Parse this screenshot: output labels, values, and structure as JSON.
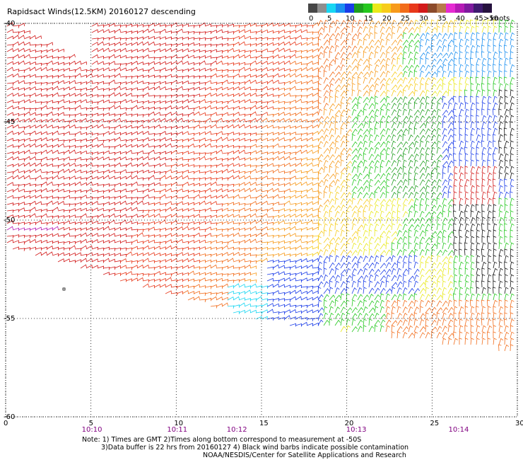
{
  "title": "Rapidsact Winds(12.5KM) 20160127 descending",
  "legend": {
    "unit": "knots",
    "swatches": [
      {
        "value": "0",
        "color": "#474747"
      },
      {
        "value": "",
        "color": "#8e8e8e"
      },
      {
        "value": "5",
        "color": "#18d6f2"
      },
      {
        "value": "",
        "color": "#1a8ff0"
      },
      {
        "value": "10",
        "color": "#1a3ce8"
      },
      {
        "value": "",
        "color": "#1e9e1e"
      },
      {
        "value": "15",
        "color": "#24c81e"
      },
      {
        "value": "",
        "color": "#e9e91a"
      },
      {
        "value": "20",
        "color": "#f7cc1a"
      },
      {
        "value": "",
        "color": "#f79a1a"
      },
      {
        "value": "25",
        "color": "#f26c1a"
      },
      {
        "value": "",
        "color": "#e8381a"
      },
      {
        "value": "30",
        "color": "#d21a1a"
      },
      {
        "value": "",
        "color": "#8b4a2a"
      },
      {
        "value": "35",
        "color": "#b77a4a"
      },
      {
        "value": "",
        "color": "#e62ad2"
      },
      {
        "value": "40",
        "color": "#b51ab5"
      },
      {
        "value": "",
        "color": "#7e1a9e"
      },
      {
        "value": "45",
        "color": "#3e1a6e"
      },
      {
        "value": ">50",
        "color": "#26123e"
      }
    ]
  },
  "axes": {
    "x_ticks": [
      "0",
      "5",
      "10",
      "15",
      "20",
      "25",
      "30"
    ],
    "y_ticks": [
      "-40",
      "-45",
      "-50",
      "-55",
      "-60"
    ]
  },
  "times": [
    "10:10",
    "10:11",
    "10:12",
    "10:13",
    "10:14"
  ],
  "notes": [
    "Note: 1) Times are GMT 2)Times along bottom correspond to measurement at -50S",
    "3)Data buffer is 22 hrs from 20160127 4) Black wind barbs indicate possible contamination",
    "NOAA/NESDIS/Center for Satellite Applications and Research"
  ],
  "map": {
    "lon_range": [
      0,
      30
    ],
    "lat_range": [
      -40,
      -60
    ],
    "swath_color_zones": "west/southwest strong red-orange; center yellow; east green-blue; far east black near -45",
    "black_barbs_note": "possible contamination"
  }
}
